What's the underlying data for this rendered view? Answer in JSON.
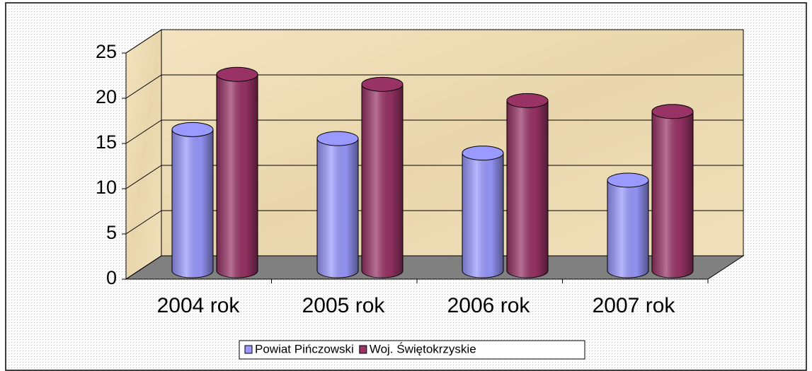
{
  "chart_data": {
    "type": "bar3d",
    "categories": [
      "2004 rok",
      "2005 rok",
      "2006 rok",
      "2007 rok"
    ],
    "series": [
      {
        "name": "Powiat Pińczowski",
        "color": "#9999ff",
        "values": [
          15.6,
          14.6,
          13.0,
          10.0
        ]
      },
      {
        "name": "Woj. Świętokrzyskie",
        "color": "#993366",
        "values": [
          21.7,
          20.6,
          18.8,
          17.6
        ]
      }
    ],
    "ylim": [
      0,
      25
    ],
    "yticks": [
      0,
      5,
      10,
      15,
      20,
      25
    ],
    "grid": true
  }
}
